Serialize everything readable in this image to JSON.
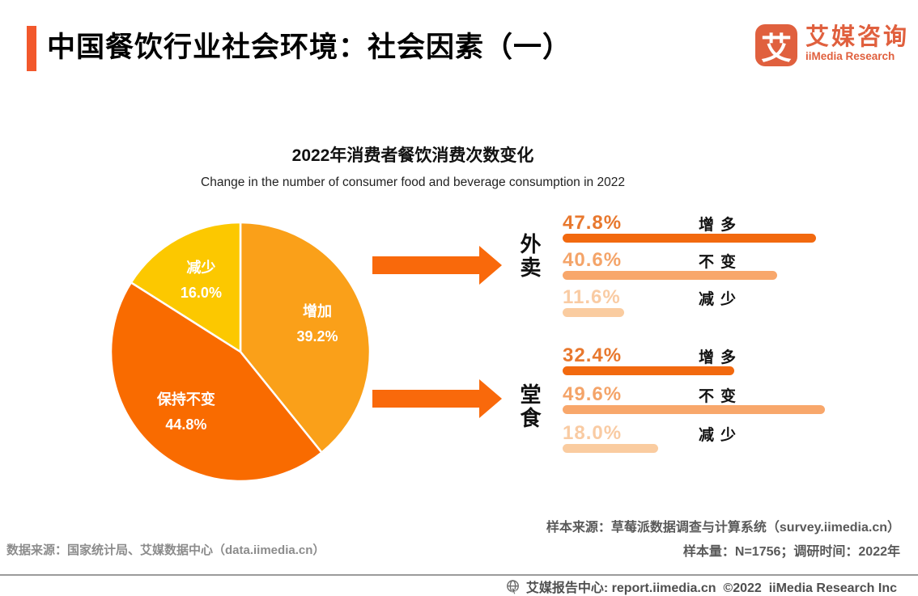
{
  "header": {
    "accent_color": "#F2582C",
    "title": "中国餐饮行业社会环境：社会因素（一）",
    "logo": {
      "icon_glyph": "艾",
      "name_cn": "艾媒咨询",
      "name_en": "iiMedia Research",
      "color": "#E0603E"
    }
  },
  "chart": {
    "title": "2022年消费者餐饮消费次数变化",
    "subtitle": "Change in the number of consumer food and beverage consumption in 2022"
  },
  "chart_data": [
    {
      "type": "pie",
      "title": "2022年消费者餐饮消费次数变化",
      "slices": [
        {
          "label": "增加",
          "value": 39.2,
          "color": "#FAA019"
        },
        {
          "label": "保持不变",
          "value": 44.8,
          "color": "#F96B00"
        },
        {
          "label": "减少",
          "value": 16.0,
          "color": "#FCC800"
        }
      ],
      "start_angle_deg": 0,
      "direction": "clockwise",
      "label_format": "{label} {value}%",
      "label_color": "#FFFFFF"
    },
    {
      "type": "bar",
      "group_label": "外卖",
      "categories": [
        "增多",
        "不变",
        "减少"
      ],
      "values": [
        47.8,
        40.6,
        11.6
      ],
      "bar_colors": [
        "#F2690F",
        "#F8A76B",
        "#FACCA0"
      ],
      "value_colors": [
        "#E8782E",
        "#F4A469",
        "#F9CBA3"
      ],
      "xlim": [
        0,
        52
      ]
    },
    {
      "type": "bar",
      "group_label": "堂食",
      "categories": [
        "增多",
        "不变",
        "减少"
      ],
      "values": [
        32.4,
        49.6,
        18.0
      ],
      "bar_colors": [
        "#F2690F",
        "#F8A76B",
        "#FACCA0"
      ],
      "value_colors": [
        "#E8782E",
        "#F4A469",
        "#F9CBA3"
      ],
      "xlim": [
        0,
        52
      ]
    }
  ],
  "arrows": {
    "color": "#F9690B"
  },
  "sources": {
    "data_source": "数据来源：国家统计局、艾媒数据中心（data.iimedia.cn）",
    "sample_source": "样本来源：草莓派数据调查与计算系统（survey.iimedia.cn）",
    "sample_info": "样本量：N=1756；调研时间：2022年"
  },
  "footer": {
    "icon": "globe-cursor-icon",
    "text": "艾媒报告中心: report.iimedia.cn  ©2022  iiMedia Research Inc"
  }
}
